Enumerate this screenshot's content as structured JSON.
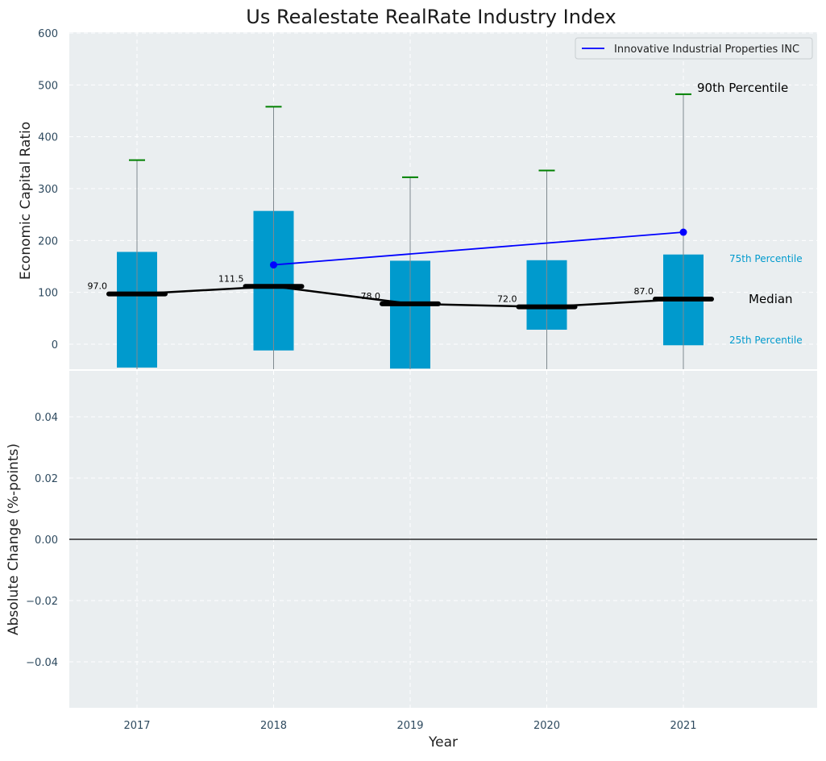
{
  "chart_data": [
    {
      "type": "box",
      "title": "Us Realestate RealRate Industry Index",
      "xlabel": "",
      "ylabel": "Economic Capital Ratio",
      "categories": [
        "2017",
        "2018",
        "2019",
        "2020",
        "2021"
      ],
      "ylim": [
        -47,
        600
      ],
      "yticks": [
        0,
        100,
        200,
        300,
        400,
        500,
        600
      ],
      "grid": true,
      "legend_position": "top-right",
      "box": {
        "p25": [
          -45,
          -12,
          -47,
          28,
          -2
        ],
        "p75": [
          178,
          257,
          161,
          162,
          173
        ],
        "p90": [
          355,
          458,
          322,
          335,
          482
        ],
        "median": [
          97.0,
          111.5,
          78.0,
          72.0,
          87.0
        ],
        "median_labels": [
          "97.0",
          "111.5",
          "78.0",
          "72.0",
          "87.0"
        ],
        "color": "#009acd"
      },
      "series": [
        {
          "name": "Innovative Industrial Properties INC",
          "x": [
            "2018",
            "2021"
          ],
          "values": [
            153,
            216
          ],
          "color": "#0000ff"
        }
      ],
      "annotations": {
        "p90_label": "90th Percentile",
        "p75_label": "75th Percentile",
        "median_label": "Median",
        "p25_label": "25th Percentile"
      }
    },
    {
      "type": "line",
      "title": "",
      "xlabel": "Year",
      "ylabel": "Absolute Change (%-points)",
      "categories": [
        "2017",
        "2018",
        "2019",
        "2020",
        "2021"
      ],
      "ylim": [
        -0.055,
        0.055
      ],
      "yticks": [
        -0.04,
        -0.02,
        0.0,
        0.02,
        0.04
      ],
      "ytick_labels": [
        "−0.04",
        "−0.02",
        "0.00",
        "0.02",
        "0.04"
      ],
      "zero_line": 0,
      "grid": true
    }
  ],
  "colors": {
    "panel_bg": "#eaeef0",
    "grid": "#ffffff",
    "median_line": "#000000",
    "whisker": "#808a8f",
    "cap": "#008000",
    "percentile_text": "#009acd",
    "tick_text": "#2e4a5f"
  }
}
